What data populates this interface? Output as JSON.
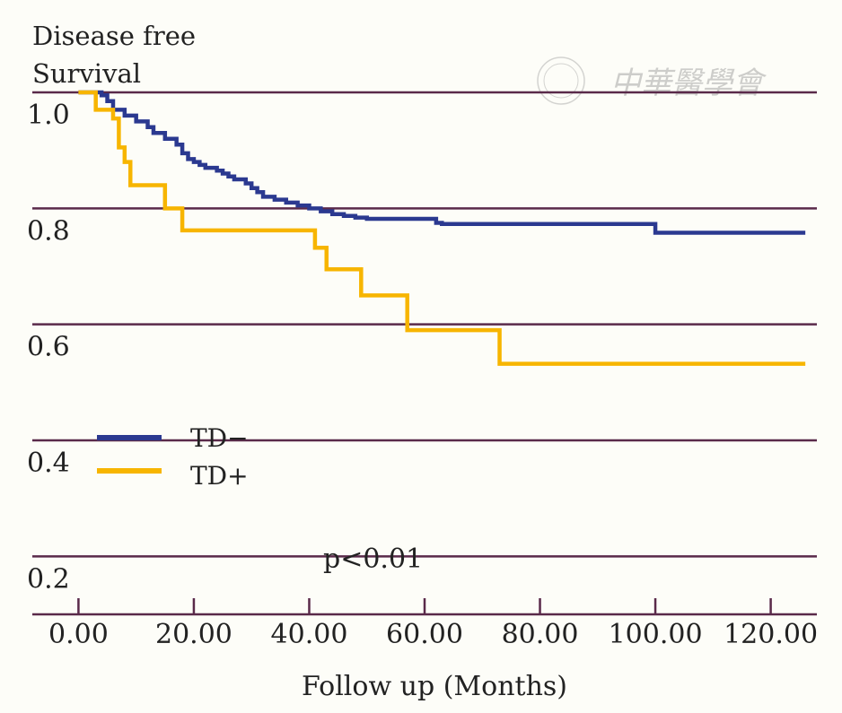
{
  "chart_data": {
    "type": "line",
    "subtype": "kaplan-meier step",
    "ylabel_lines": [
      "Disease free",
      "Survival"
    ],
    "xlabel": "Follow up (Months)",
    "xlim": [
      -8,
      128
    ],
    "ylim": [
      0.1,
      1.0
    ],
    "x_ticks": [
      0,
      20,
      40,
      60,
      80,
      100,
      120
    ],
    "x_tick_labels": [
      "0.00",
      "20.00",
      "40.00",
      "60.00",
      "80.00",
      "100.00",
      "120.00"
    ],
    "y_ticks": [
      0.2,
      0.4,
      0.6,
      0.8,
      1.0
    ],
    "y_tick_labels": [
      "0.2",
      "0.4",
      "0.6",
      "0.8",
      "1.0"
    ],
    "grid": true,
    "annotation": "p<0.01",
    "legend_position": "lower-left",
    "series": [
      {
        "name": "TD−",
        "color": "#2b3990",
        "points": [
          [
            0,
            1.0
          ],
          [
            4,
            0.995
          ],
          [
            5,
            0.985
          ],
          [
            6,
            0.97
          ],
          [
            8,
            0.96
          ],
          [
            10,
            0.95
          ],
          [
            12,
            0.94
          ],
          [
            13,
            0.93
          ],
          [
            15,
            0.92
          ],
          [
            17,
            0.91
          ],
          [
            18,
            0.895
          ],
          [
            19,
            0.885
          ],
          [
            20,
            0.88
          ],
          [
            21,
            0.875
          ],
          [
            22,
            0.87
          ],
          [
            24,
            0.865
          ],
          [
            25,
            0.86
          ],
          [
            26,
            0.855
          ],
          [
            27,
            0.85
          ],
          [
            29,
            0.843
          ],
          [
            30,
            0.835
          ],
          [
            31,
            0.828
          ],
          [
            32,
            0.82
          ],
          [
            34,
            0.815
          ],
          [
            36,
            0.81
          ],
          [
            38,
            0.805
          ],
          [
            40,
            0.8
          ],
          [
            42,
            0.795
          ],
          [
            44,
            0.79
          ],
          [
            46,
            0.787
          ],
          [
            48,
            0.784
          ],
          [
            50,
            0.782
          ],
          [
            61,
            0.782
          ],
          [
            62,
            0.775
          ],
          [
            63,
            0.773
          ],
          [
            99,
            0.773
          ],
          [
            100,
            0.758
          ],
          [
            126,
            0.758
          ]
        ]
      },
      {
        "name": "TD+",
        "color": "#f7b500",
        "points": [
          [
            0,
            1.0
          ],
          [
            3,
            0.97
          ],
          [
            6,
            0.955
          ],
          [
            7,
            0.905
          ],
          [
            8,
            0.88
          ],
          [
            9,
            0.84
          ],
          [
            15,
            0.8
          ],
          [
            18,
            0.762
          ],
          [
            41,
            0.732
          ],
          [
            43,
            0.695
          ],
          [
            49,
            0.65
          ],
          [
            57,
            0.59
          ],
          [
            73,
            0.532
          ],
          [
            126,
            0.532
          ]
        ]
      }
    ]
  },
  "watermark": {
    "text": "中華醫學會"
  }
}
